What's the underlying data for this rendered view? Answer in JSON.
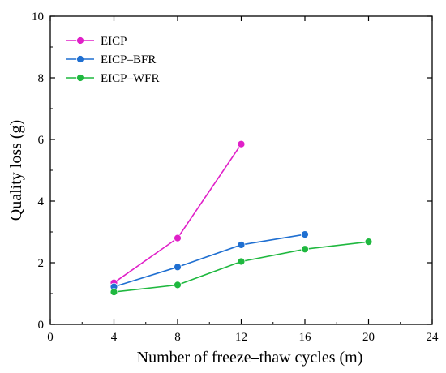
{
  "chart_data": {
    "type": "line",
    "title": "",
    "xlabel": "Number of freeze–thaw cycles (m)",
    "ylabel": "Quality loss (g)",
    "xlim": [
      0,
      24
    ],
    "ylim": [
      0,
      10
    ],
    "xticks": [
      0,
      4,
      8,
      12,
      16,
      20,
      24
    ],
    "yticks": [
      0,
      2,
      4,
      6,
      8,
      10
    ],
    "grid": false,
    "legend_position": "top-left",
    "series": [
      {
        "name": "EICP",
        "color": "#e020c8",
        "x": [
          4,
          8,
          12
        ],
        "y": [
          1.35,
          2.8,
          5.85
        ]
      },
      {
        "name": "EICP–BFR",
        "color": "#1f6fd1",
        "x": [
          4,
          8,
          12,
          16
        ],
        "y": [
          1.22,
          1.86,
          2.58,
          2.92
        ]
      },
      {
        "name": "EICP–WFR",
        "color": "#1fb83f",
        "x": [
          4,
          8,
          12,
          16,
          20
        ],
        "y": [
          1.05,
          1.28,
          2.04,
          2.44,
          2.68
        ]
      }
    ]
  }
}
